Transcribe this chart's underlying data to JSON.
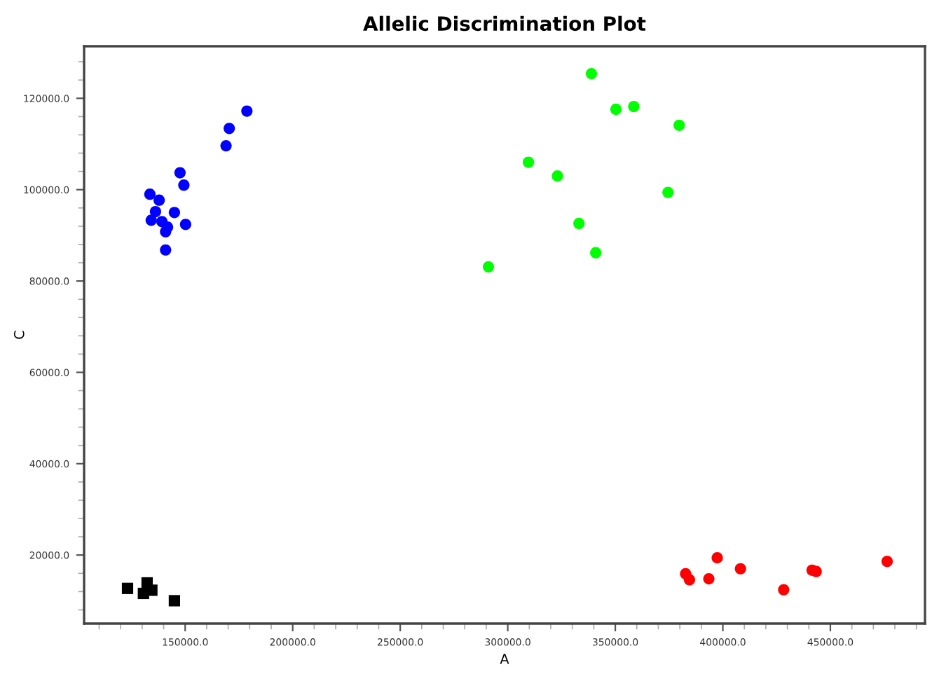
{
  "chart_data": {
    "type": "scatter",
    "title": "Allelic Discrimination Plot",
    "xlabel": "A",
    "ylabel": "C",
    "xlim": [
      103000,
      494000
    ],
    "ylim": [
      5000,
      131400
    ],
    "grid": false,
    "legend": false,
    "xticks": [
      {
        "value": 110000,
        "label": null
      },
      {
        "value": 120000,
        "label": null
      },
      {
        "value": 130000,
        "label": null
      },
      {
        "value": 140000,
        "label": null
      },
      {
        "value": 150000,
        "label": "150000.0"
      },
      {
        "value": 160000,
        "label": null
      },
      {
        "value": 170000,
        "label": null
      },
      {
        "value": 180000,
        "label": null
      },
      {
        "value": 190000,
        "label": null
      },
      {
        "value": 200000,
        "label": "200000.0"
      },
      {
        "value": 210000,
        "label": null
      },
      {
        "value": 220000,
        "label": null
      },
      {
        "value": 230000,
        "label": null
      },
      {
        "value": 240000,
        "label": null
      },
      {
        "value": 250000,
        "label": "250000.0"
      },
      {
        "value": 260000,
        "label": null
      },
      {
        "value": 270000,
        "label": null
      },
      {
        "value": 280000,
        "label": null
      },
      {
        "value": 290000,
        "label": null
      },
      {
        "value": 300000,
        "label": "300000.0"
      },
      {
        "value": 310000,
        "label": null
      },
      {
        "value": 320000,
        "label": null
      },
      {
        "value": 330000,
        "label": null
      },
      {
        "value": 340000,
        "label": null
      },
      {
        "value": 350000,
        "label": "350000.0"
      },
      {
        "value": 360000,
        "label": null
      },
      {
        "value": 370000,
        "label": null
      },
      {
        "value": 380000,
        "label": null
      },
      {
        "value": 390000,
        "label": null
      },
      {
        "value": 400000,
        "label": "400000.0"
      },
      {
        "value": 410000,
        "label": null
      },
      {
        "value": 420000,
        "label": null
      },
      {
        "value": 430000,
        "label": null
      },
      {
        "value": 440000,
        "label": null
      },
      {
        "value": 450000,
        "label": "450000.0"
      },
      {
        "value": 460000,
        "label": null
      },
      {
        "value": 470000,
        "label": null
      },
      {
        "value": 480000,
        "label": null
      },
      {
        "value": 490000,
        "label": null
      }
    ],
    "yticks": [
      {
        "value": 8000,
        "label": null
      },
      {
        "value": 12000,
        "label": null
      },
      {
        "value": 16000,
        "label": null
      },
      {
        "value": 20000,
        "label": "20000.0"
      },
      {
        "value": 24000,
        "label": null
      },
      {
        "value": 28000,
        "label": null
      },
      {
        "value": 32000,
        "label": null
      },
      {
        "value": 36000,
        "label": null
      },
      {
        "value": 40000,
        "label": "40000.0"
      },
      {
        "value": 44000,
        "label": null
      },
      {
        "value": 48000,
        "label": null
      },
      {
        "value": 52000,
        "label": null
      },
      {
        "value": 56000,
        "label": null
      },
      {
        "value": 60000,
        "label": "60000.0"
      },
      {
        "value": 64000,
        "label": null
      },
      {
        "value": 68000,
        "label": null
      },
      {
        "value": 72000,
        "label": null
      },
      {
        "value": 76000,
        "label": null
      },
      {
        "value": 80000,
        "label": "80000.0"
      },
      {
        "value": 84000,
        "label": null
      },
      {
        "value": 88000,
        "label": null
      },
      {
        "value": 92000,
        "label": null
      },
      {
        "value": 96000,
        "label": null
      },
      {
        "value": 100000,
        "label": "100000.0"
      },
      {
        "value": 104000,
        "label": null
      },
      {
        "value": 108000,
        "label": null
      },
      {
        "value": 112000,
        "label": null
      },
      {
        "value": 116000,
        "label": null
      },
      {
        "value": 120000,
        "label": "120000.0"
      },
      {
        "value": 124000,
        "label": null
      },
      {
        "value": 128000,
        "label": null
      }
    ],
    "series": [
      {
        "color": "#0000ff",
        "marker": "circle",
        "x": [
          178700,
          170500,
          169000,
          147600,
          149400,
          133600,
          137900,
          136200,
          145000,
          134200,
          139200,
          141800,
          140900,
          150200,
          140900
        ],
        "values": [
          117200,
          113400,
          109600,
          103700,
          101000,
          99000,
          97700,
          95200,
          95000,
          93300,
          93000,
          91800,
          90800,
          92400,
          86800
        ]
      },
      {
        "color": "#00ff00",
        "marker": "circle",
        "x": [
          338900,
          350300,
          358600,
          379700,
          309600,
          323100,
          374500,
          333100,
          340900,
          291000
        ],
        "values": [
          125400,
          117600,
          118200,
          114100,
          106000,
          103000,
          99400,
          92600,
          86200,
          83100
        ]
      },
      {
        "color": "#ff0000",
        "marker": "circle",
        "x": [
          382700,
          384500,
          397400,
          393500,
          408200,
          428300,
          441500,
          443400,
          476400
        ],
        "values": [
          15900,
          14600,
          19400,
          14800,
          17000,
          12400,
          16700,
          16400,
          18600
        ]
      },
      {
        "color": "#000000",
        "marker": "square",
        "x": [
          123200,
          132300,
          130600,
          134500,
          145000
        ],
        "values": [
          12700,
          13900,
          11600,
          12300,
          10000
        ]
      }
    ]
  }
}
